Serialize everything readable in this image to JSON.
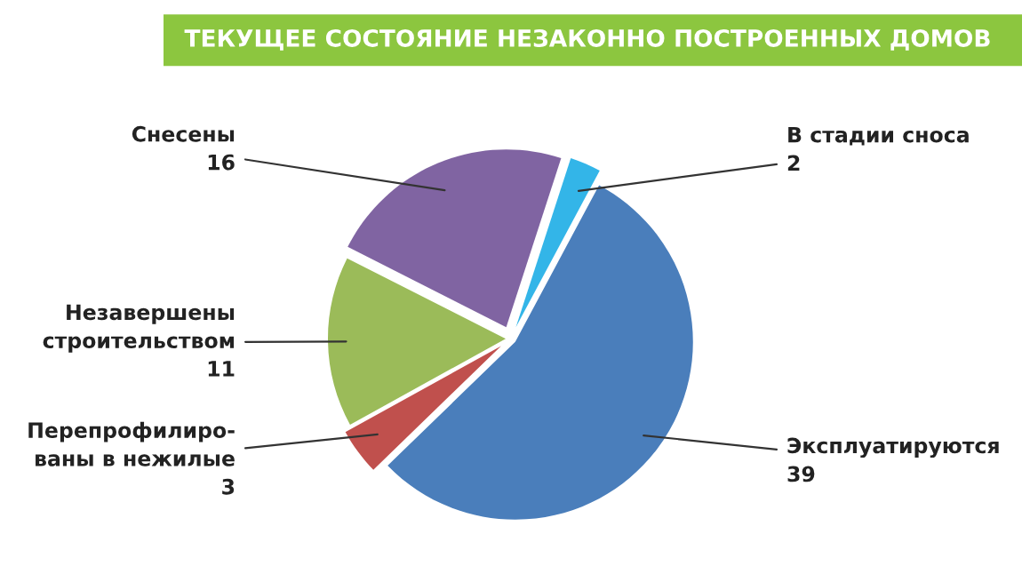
{
  "chart_data": {
    "type": "pie",
    "title": "ТЕКУЩЕЕ СОСТОЯНИЕ НЕЗАКОННО ПОСТРОЕННЫХ ДОМОВ",
    "categories": [
      "В стадии сноса",
      "Эксплуатируются",
      "Перепрофилиро-\nваны в нежилые",
      "Незавершены\nстроительством",
      "Снесены"
    ],
    "values": [
      2,
      39,
      3,
      11,
      16
    ],
    "colors": [
      "#33b5e8",
      "#4a7ebb",
      "#c0504d",
      "#9bbb59",
      "#8064a2"
    ],
    "data_labels": true,
    "legend": false
  }
}
